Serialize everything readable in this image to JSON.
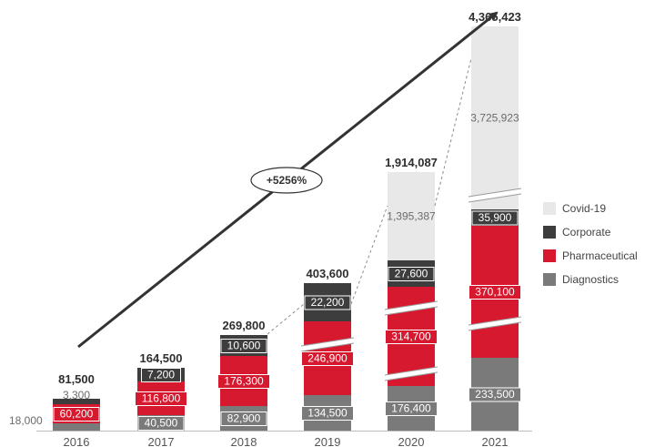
{
  "chart_data": {
    "type": "bar",
    "stacked": true,
    "categories": [
      "2016",
      "2017",
      "2018",
      "2019",
      "2020",
      "2021"
    ],
    "series": [
      {
        "name": "Diagnostics",
        "color": "#7a7a7a",
        "values": [
          18000,
          40500,
          82900,
          134500,
          176400,
          233500
        ],
        "labels": [
          "18,000",
          "40,500",
          "82,900",
          "134,500",
          "176,400",
          "233,500"
        ]
      },
      {
        "name": "Pharmaceutical",
        "color": "#d7192f",
        "values": [
          60200,
          116800,
          176300,
          246900,
          314700,
          370100
        ],
        "labels": [
          "60,200",
          "116,800",
          "176,300",
          "246,900",
          "314,700",
          "370,100"
        ]
      },
      {
        "name": "Corporate",
        "color": "#3d3d3d",
        "values": [
          3300,
          7200,
          10600,
          22200,
          27600,
          35900
        ],
        "labels": [
          "3,300",
          "7,200",
          "10,600",
          "22,200",
          "27,600",
          "35,900"
        ]
      },
      {
        "name": "Covid-19",
        "color": "#e8e8e8",
        "values": [
          0,
          0,
          0,
          0,
          1395387,
          3725923
        ],
        "labels": [
          "",
          "",
          "",
          "",
          "1,395,387",
          "3,725,923"
        ]
      }
    ],
    "totals": [
      81500,
      164500,
      269800,
      403600,
      1914087,
      4365423
    ],
    "total_labels": [
      "81,500",
      "164,500",
      "269,800",
      "403,600",
      "1,914,087",
      "4,365,423"
    ],
    "growth_label": "+5256%",
    "axis_breaks": true,
    "legend_position": "right",
    "grid": false
  }
}
